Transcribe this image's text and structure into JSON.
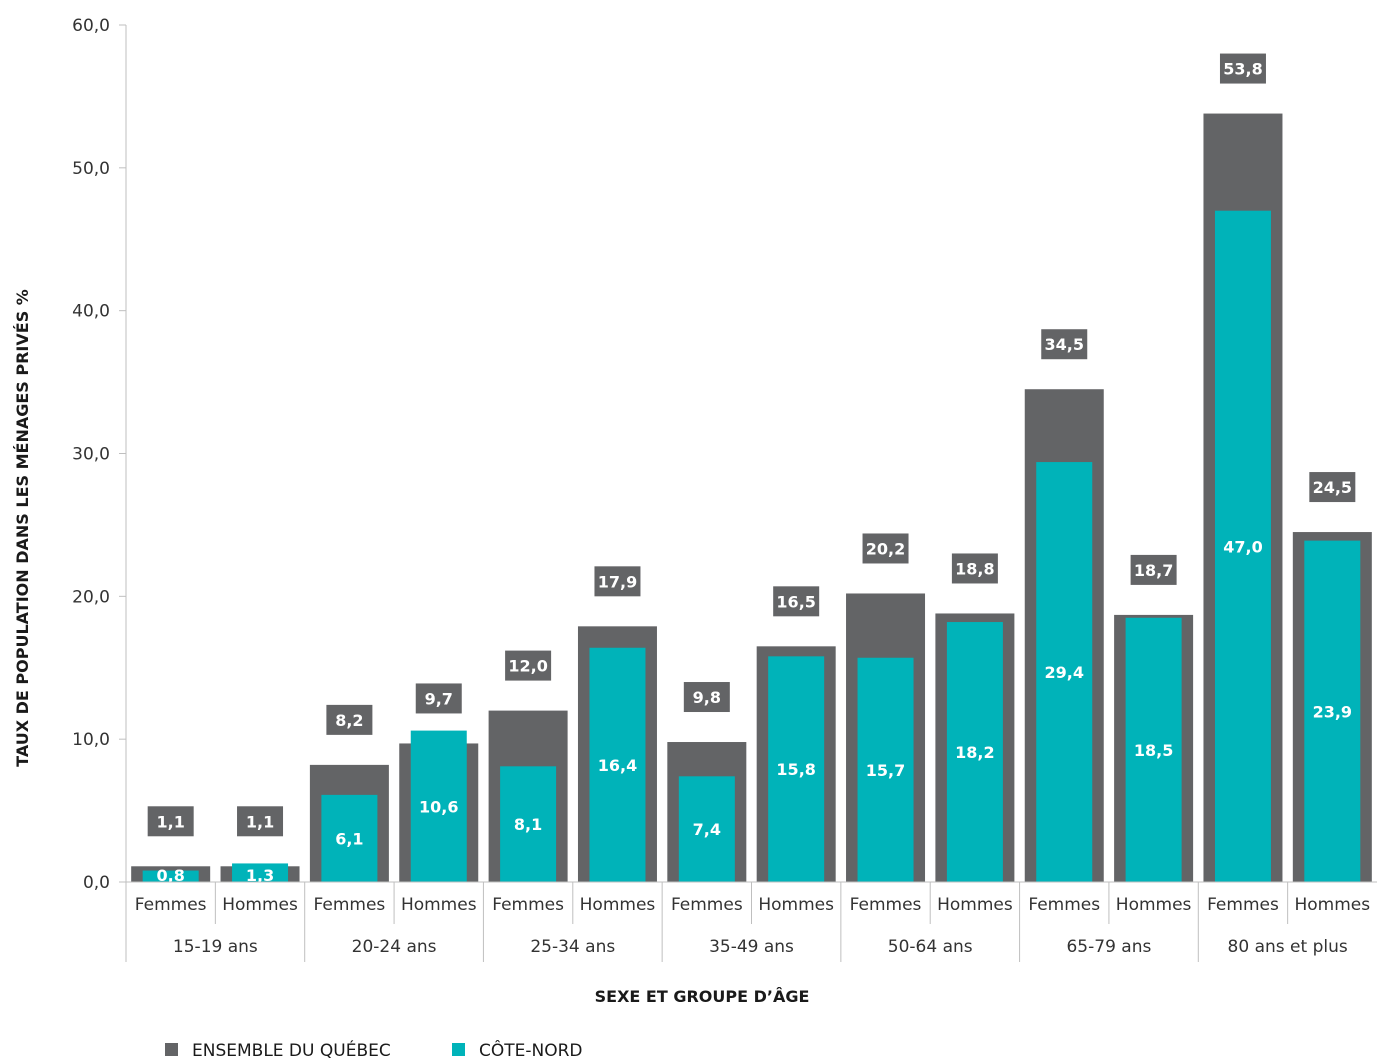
{
  "chart_data": {
    "type": "bar",
    "xlabel": "SEXE ET GROUPE D’ÂGE",
    "ylabel": "TAUX DE POPULATION DANS LES MÉNAGES PRIVÉS %",
    "ylim": [
      0,
      60
    ],
    "yticks": [
      "0,0",
      "10,0",
      "20,0",
      "30,0",
      "40,0",
      "50,0",
      "60,0"
    ],
    "groups": [
      "15-19 ans",
      "20-24 ans",
      "25-34 ans",
      "35-49 ans",
      "50-64 ans",
      "65-79 ans",
      "80 ans et plus"
    ],
    "categories": [
      {
        "sex": "Femmes",
        "group": "15-19 ans"
      },
      {
        "sex": "Hommes",
        "group": "15-19 ans"
      },
      {
        "sex": "Femmes",
        "group": "20-24 ans"
      },
      {
        "sex": "Hommes",
        "group": "20-24 ans"
      },
      {
        "sex": "Femmes",
        "group": "25-34 ans"
      },
      {
        "sex": "Hommes",
        "group": "25-34 ans"
      },
      {
        "sex": "Femmes",
        "group": "35-49 ans"
      },
      {
        "sex": "Hommes",
        "group": "35-49 ans"
      },
      {
        "sex": "Femmes",
        "group": "50-64 ans"
      },
      {
        "sex": "Hommes",
        "group": "50-64 ans"
      },
      {
        "sex": "Femmes",
        "group": "65-79 ans"
      },
      {
        "sex": "Hommes",
        "group": "65-79 ans"
      },
      {
        "sex": "Femmes",
        "group": "80 ans et plus"
      },
      {
        "sex": "Hommes",
        "group": "80 ans et plus"
      }
    ],
    "series": [
      {
        "name": "ENSEMBLE DU QUÉBEC",
        "color": "#636466",
        "values": [
          1.1,
          1.1,
          8.2,
          9.7,
          12.0,
          17.9,
          9.8,
          16.5,
          20.2,
          18.8,
          34.5,
          18.7,
          53.8,
          24.5
        ],
        "labels": [
          "1,1",
          "1,1",
          "8,2",
          "9,7",
          "12,0",
          "17,9",
          "9,8",
          "16,5",
          "20,2",
          "18,8",
          "34,5",
          "18,7",
          "53,8",
          "24,5"
        ]
      },
      {
        "name": "CÔTE-NORD",
        "color": "#00B3B9",
        "values": [
          0.8,
          1.3,
          6.1,
          10.6,
          8.1,
          16.4,
          7.4,
          15.8,
          15.7,
          18.2,
          29.4,
          18.5,
          47.0,
          23.9
        ],
        "labels": [
          "0,8",
          "1,3",
          "6,1",
          "10,6",
          "8,1",
          "16,4",
          "7,4",
          "15,8",
          "15,7",
          "18,2",
          "29,4",
          "18,5",
          "47,0",
          "23,9"
        ]
      }
    ],
    "legend": "bottom-left",
    "grid": false
  }
}
